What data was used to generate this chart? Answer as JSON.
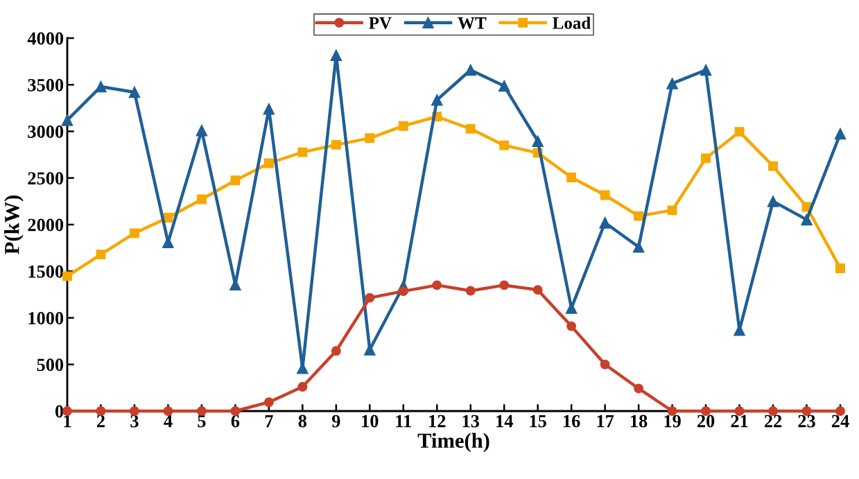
{
  "chart_data": {
    "type": "line",
    "xlabel": "Time(h)",
    "ylabel": "P(kW)",
    "x": [
      1,
      2,
      3,
      4,
      5,
      6,
      7,
      8,
      9,
      10,
      11,
      12,
      13,
      14,
      15,
      16,
      17,
      18,
      19,
      20,
      21,
      22,
      23,
      24
    ],
    "xlim": [
      1,
      24
    ],
    "xticks": [
      1,
      2,
      3,
      4,
      5,
      6,
      7,
      8,
      9,
      10,
      11,
      12,
      13,
      14,
      15,
      16,
      17,
      18,
      19,
      20,
      21,
      22,
      23,
      24
    ],
    "ylim": [
      0,
      4000
    ],
    "yticks": [
      0,
      500,
      1000,
      1500,
      2000,
      2500,
      3000,
      3500,
      4000
    ],
    "grid": false,
    "legend": "top",
    "series": [
      {
        "name": "PV",
        "color": "#c8402a",
        "marker": "circle",
        "values": [
          0,
          0,
          0,
          0,
          0,
          0,
          95,
          260,
          645,
          1215,
          1285,
          1350,
          1290,
          1350,
          1300,
          910,
          500,
          242,
          0,
          0,
          0,
          0,
          0,
          0
        ]
      },
      {
        "name": "WT",
        "color": "#1f5f96",
        "marker": "triangle",
        "values": [
          3120,
          3480,
          3420,
          1810,
          3010,
          1355,
          3240,
          460,
          3816,
          658,
          1342,
          3337,
          3658,
          3487,
          2895,
          1105,
          2020,
          1760,
          3514,
          3658,
          868,
          2250,
          2053,
          2974
        ]
      },
      {
        "name": "Load",
        "color": "#f5a800",
        "marker": "square",
        "values": [
          1447,
          1679,
          1908,
          2074,
          2271,
          2474,
          2658,
          2776,
          2856,
          2927,
          3058,
          3158,
          3027,
          2850,
          2769,
          2506,
          2316,
          2092,
          2153,
          2711,
          2995,
          2627,
          2190,
          1532
        ]
      }
    ]
  }
}
